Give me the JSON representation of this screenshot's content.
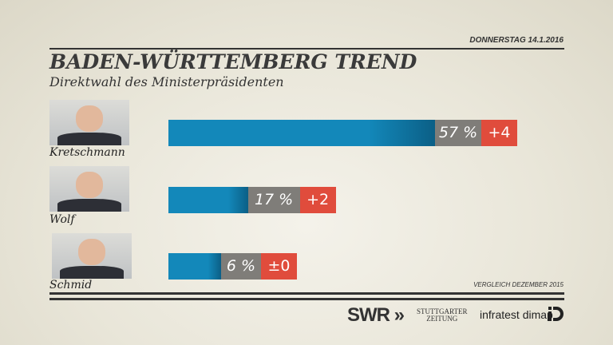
{
  "header": {
    "date": "DONNERSTAG  14.1.2016",
    "title": "BADEN-WÜRTTEMBERG TREND",
    "subtitle": "Direktwahl des Ministerpräsidenten"
  },
  "chart_data": {
    "type": "bar",
    "title": "BADEN-WÜRTTEMBERG TREND",
    "subtitle": "Direktwahl des Ministerpräsidenten",
    "categories": [
      "Kretschmann",
      "Wolf",
      "Schmid"
    ],
    "values": [
      57,
      17,
      6
    ],
    "value_labels": [
      "57 %",
      "17 %",
      "6 %"
    ],
    "changes": [
      "+4",
      "+2",
      "±0"
    ],
    "colors": {
      "bar": "#1388ba",
      "value_box": "#7f7d79",
      "change_box": "#e04c3c"
    }
  },
  "footer": {
    "note": "VERGLEICH DEZEMBER 2015",
    "logos": [
      "SWR",
      "STUTTGARTER ZEITUNG",
      "infratest dimap"
    ],
    "swr": "SWR",
    "swr_arrows": "»",
    "stz_line1": "STUTTGARTER",
    "stz_line2": "ZEITUNG",
    "infratest": "infratest dimap"
  }
}
